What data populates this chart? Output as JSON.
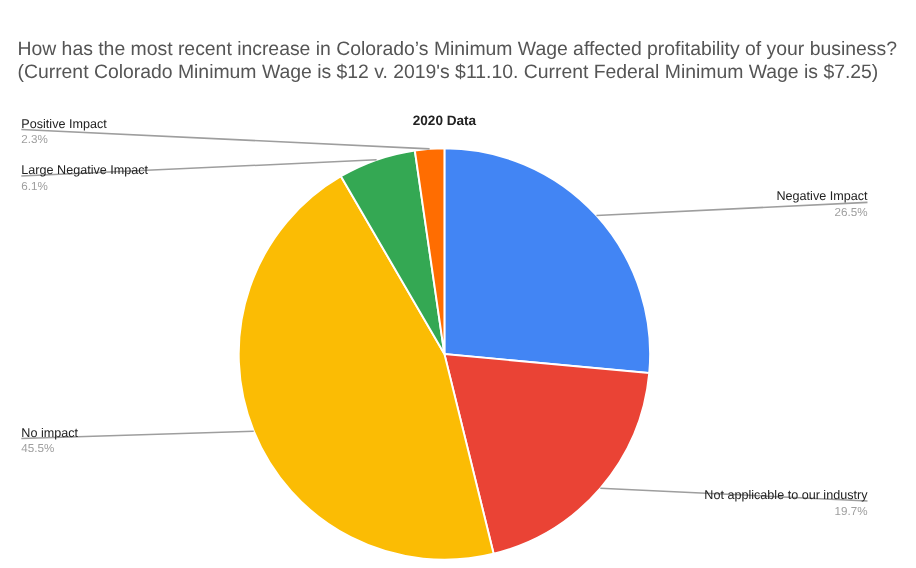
{
  "chart_data": {
    "type": "pie",
    "title": [
      "How has the most recent increase in Colorado’s Minimum Wage affected profitability of your business?",
      "(Current Colorado Minimum Wage is $12 v. 2019's $11.10. Current Federal Minimum Wage is $7.25)"
    ],
    "subtitle": "2020 Data",
    "categories": [
      "Negative Impact",
      "Not applicable to our industry",
      "No impact",
      "Large Negative Impact",
      "Positive Impact"
    ],
    "values": [
      26.5,
      19.7,
      45.5,
      6.1,
      2.3
    ],
    "value_labels": [
      "26.5%",
      "19.7%",
      "45.5%",
      "6.1%",
      "2.3%"
    ],
    "colors": [
      "#4285f4",
      "#ea4335",
      "#fbbc04",
      "#34a853",
      "#ff6d01"
    ],
    "legend": false
  }
}
